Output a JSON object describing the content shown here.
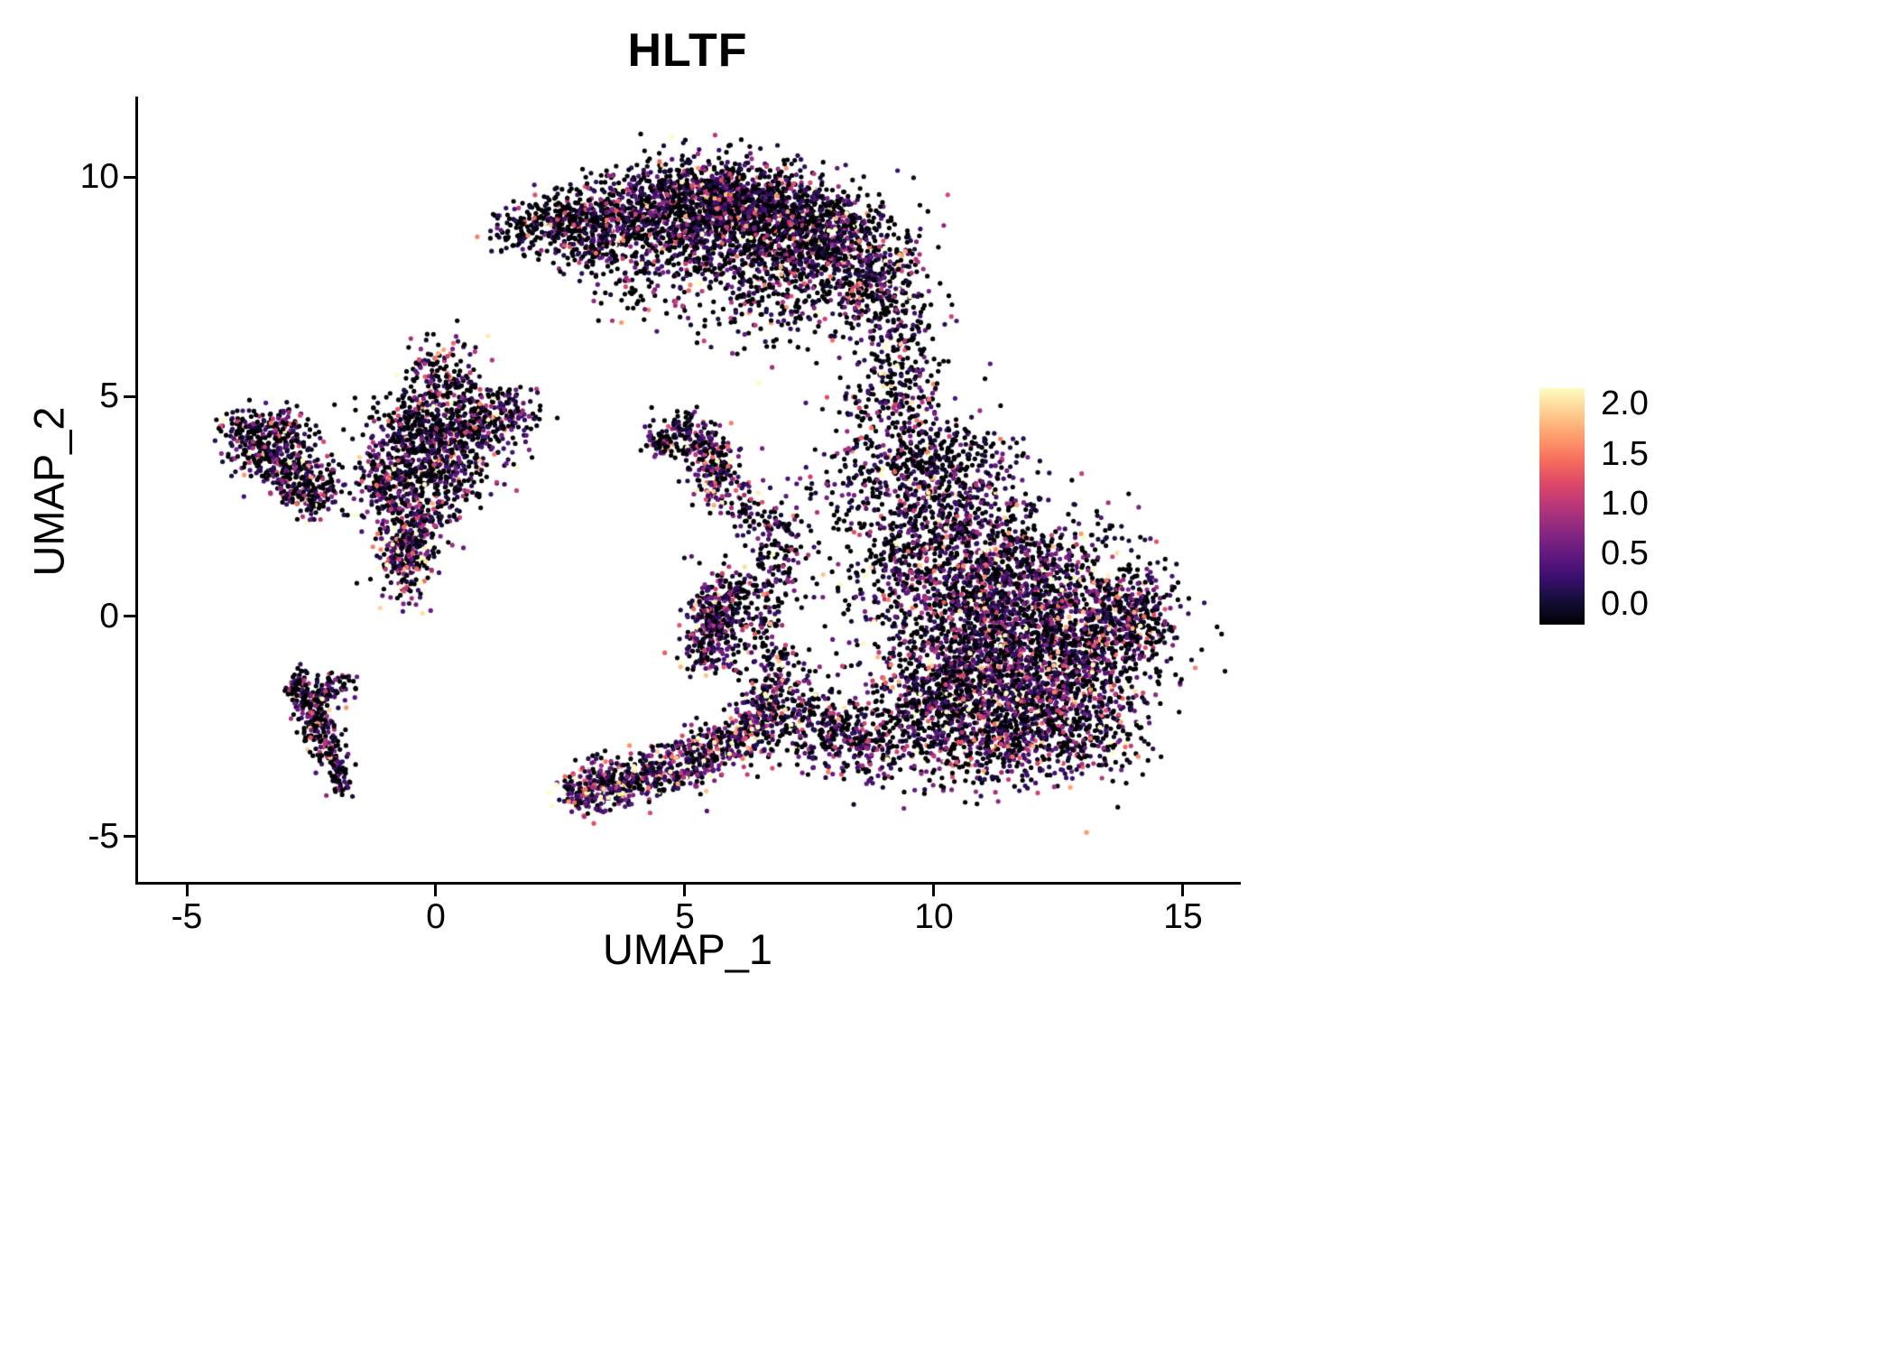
{
  "chart_data": {
    "type": "scatter",
    "title": "HLTF",
    "xlabel": "UMAP_1",
    "ylabel": "UMAP_2",
    "xlim": [
      -6.0,
      16.1
    ],
    "ylim": [
      -6.05,
      11.8
    ],
    "x_ticks": [
      -5,
      0,
      5,
      10,
      15
    ],
    "x_tick_labels": [
      "-5",
      "0",
      "5",
      "10",
      "15"
    ],
    "y_ticks": [
      -5,
      0,
      5,
      10
    ],
    "y_tick_labels": [
      "-5",
      "0",
      "5",
      "10"
    ],
    "grid": false,
    "background": "#ffffff",
    "axis_color": "#000000",
    "point_radius_px": 2.6,
    "n_points_approx": 14800,
    "colorbar": {
      "min": 0.0,
      "max": 2.0,
      "ticks": [
        "2.0",
        "1.5",
        "1.0",
        "0.5",
        "0.0"
      ],
      "colormap": "magma",
      "stops": [
        {
          "t": 0.0,
          "c": "#000004"
        },
        {
          "t": 0.1,
          "c": "#140e36"
        },
        {
          "t": 0.2,
          "c": "#3b0f70"
        },
        {
          "t": 0.3,
          "c": "#641a80"
        },
        {
          "t": 0.4,
          "c": "#8c2981"
        },
        {
          "t": 0.5,
          "c": "#b73779"
        },
        {
          "t": 0.6,
          "c": "#de4968"
        },
        {
          "t": 0.7,
          "c": "#f7705c"
        },
        {
          "t": 0.8,
          "c": "#fe9f6d"
        },
        {
          "t": 0.9,
          "c": "#fecf92"
        },
        {
          "t": 1.0,
          "c": "#fcfdbf"
        }
      ]
    },
    "cluster_fields": [
      "x",
      "y",
      "sx",
      "sy",
      "n",
      "p_zero",
      "expr_mean"
    ],
    "clusters": [
      [
        1.6,
        8.8,
        0.3,
        0.25,
        70,
        0.6,
        0.4
      ],
      [
        2.4,
        8.9,
        0.45,
        0.35,
        150,
        0.55,
        0.45
      ],
      [
        3.2,
        9.0,
        0.5,
        0.45,
        250,
        0.55,
        0.45
      ],
      [
        4.2,
        9.3,
        0.55,
        0.5,
        330,
        0.5,
        0.5
      ],
      [
        5.2,
        9.6,
        0.55,
        0.45,
        380,
        0.5,
        0.5
      ],
      [
        6.2,
        9.4,
        0.6,
        0.5,
        430,
        0.45,
        0.5
      ],
      [
        7.2,
        9.0,
        0.6,
        0.55,
        430,
        0.45,
        0.55
      ],
      [
        8.2,
        8.5,
        0.6,
        0.6,
        380,
        0.45,
        0.55
      ],
      [
        8.9,
        7.6,
        0.5,
        0.6,
        280,
        0.45,
        0.55
      ],
      [
        7.0,
        8.0,
        0.9,
        0.7,
        320,
        0.5,
        0.5
      ],
      [
        6.0,
        8.7,
        0.7,
        0.5,
        230,
        0.5,
        0.5
      ],
      [
        5.0,
        8.5,
        0.5,
        0.5,
        180,
        0.55,
        0.45
      ],
      [
        6.6,
        7.0,
        0.9,
        0.55,
        140,
        0.55,
        0.5
      ],
      [
        4.1,
        7.7,
        0.6,
        0.5,
        90,
        0.6,
        0.45
      ],
      [
        3.3,
        8.3,
        0.4,
        0.35,
        80,
        0.6,
        0.45
      ],
      [
        9.35,
        6.1,
        0.45,
        0.75,
        140,
        0.5,
        0.5
      ],
      [
        9.0,
        4.9,
        0.5,
        0.65,
        140,
        0.5,
        0.55
      ],
      [
        9.5,
        3.9,
        0.6,
        0.65,
        170,
        0.45,
        0.55
      ],
      [
        10.0,
        2.6,
        0.75,
        0.75,
        280,
        0.45,
        0.55
      ],
      [
        9.2,
        1.2,
        0.55,
        0.9,
        240,
        0.5,
        0.5
      ],
      [
        11.0,
        1.6,
        0.95,
        0.85,
        480,
        0.45,
        0.55
      ],
      [
        12.1,
        0.6,
        1.0,
        0.85,
        560,
        0.4,
        0.55
      ],
      [
        11.0,
        0.0,
        0.95,
        0.85,
        560,
        0.4,
        0.6
      ],
      [
        12.5,
        -1.0,
        0.95,
        0.85,
        620,
        0.4,
        0.6
      ],
      [
        11.5,
        -1.9,
        0.95,
        0.75,
        560,
        0.4,
        0.6
      ],
      [
        10.4,
        -1.1,
        0.85,
        0.85,
        460,
        0.45,
        0.55
      ],
      [
        13.5,
        -0.4,
        0.65,
        0.75,
        320,
        0.45,
        0.55
      ],
      [
        14.1,
        0.3,
        0.35,
        0.45,
        130,
        0.5,
        0.5
      ],
      [
        12.9,
        -2.5,
        0.75,
        0.6,
        330,
        0.45,
        0.55
      ],
      [
        11.0,
        -3.0,
        0.8,
        0.5,
        280,
        0.45,
        0.55
      ],
      [
        9.8,
        -2.1,
        0.7,
        0.65,
        280,
        0.45,
        0.55
      ],
      [
        10.4,
        3.5,
        0.6,
        0.45,
        160,
        0.5,
        0.5
      ],
      [
        -3.8,
        4.1,
        0.3,
        0.3,
        110,
        0.45,
        0.55
      ],
      [
        -3.3,
        3.7,
        0.4,
        0.4,
        170,
        0.45,
        0.55
      ],
      [
        -2.8,
        3.2,
        0.4,
        0.4,
        170,
        0.45,
        0.55
      ],
      [
        -2.5,
        2.8,
        0.3,
        0.3,
        110,
        0.45,
        0.6
      ],
      [
        -3.1,
        4.35,
        0.3,
        0.22,
        70,
        0.5,
        0.5
      ],
      [
        -0.3,
        4.5,
        0.5,
        0.4,
        190,
        0.45,
        0.55
      ],
      [
        -0.5,
        3.6,
        0.5,
        0.5,
        240,
        0.45,
        0.55
      ],
      [
        -0.9,
        2.9,
        0.4,
        0.4,
        170,
        0.45,
        0.55
      ],
      [
        -0.4,
        2.2,
        0.35,
        0.45,
        170,
        0.4,
        0.6
      ],
      [
        -0.6,
        1.3,
        0.28,
        0.5,
        230,
        0.25,
        0.7
      ],
      [
        0.3,
        4.0,
        0.5,
        0.5,
        190,
        0.45,
        0.55
      ],
      [
        0.9,
        4.4,
        0.5,
        0.4,
        170,
        0.45,
        0.55
      ],
      [
        1.5,
        4.6,
        0.3,
        0.3,
        80,
        0.5,
        0.5
      ],
      [
        0.5,
        5.3,
        0.3,
        0.5,
        100,
        0.5,
        0.5
      ],
      [
        -0.1,
        5.7,
        0.22,
        0.3,
        60,
        0.5,
        0.5
      ],
      [
        0.3,
        3.1,
        0.45,
        0.45,
        110,
        0.5,
        0.5
      ],
      [
        4.45,
        3.9,
        0.18,
        0.18,
        55,
        0.45,
        0.6
      ],
      [
        5.0,
        4.25,
        0.3,
        0.3,
        80,
        0.5,
        0.5
      ],
      [
        5.6,
        3.3,
        0.28,
        0.4,
        160,
        0.3,
        0.7
      ],
      [
        5.35,
        3.85,
        0.2,
        0.2,
        60,
        0.45,
        0.55
      ],
      [
        6.25,
        2.45,
        0.18,
        0.35,
        50,
        0.5,
        0.5
      ],
      [
        -2.75,
        -1.6,
        0.16,
        0.22,
        60,
        0.5,
        0.5
      ],
      [
        -2.55,
        -2.1,
        0.15,
        0.25,
        70,
        0.5,
        0.5
      ],
      [
        -2.35,
        -2.6,
        0.15,
        0.25,
        70,
        0.5,
        0.45
      ],
      [
        -2.1,
        -3.1,
        0.15,
        0.25,
        60,
        0.5,
        0.45
      ],
      [
        -1.9,
        -3.65,
        0.13,
        0.22,
        50,
        0.55,
        0.45
      ],
      [
        -2.35,
        -1.8,
        0.22,
        0.16,
        45,
        0.5,
        0.5
      ],
      [
        -1.95,
        -1.55,
        0.16,
        0.18,
        35,
        0.5,
        0.5
      ],
      [
        3.0,
        -4.0,
        0.25,
        0.3,
        150,
        0.2,
        0.7
      ],
      [
        3.55,
        -3.85,
        0.3,
        0.25,
        130,
        0.25,
        0.65
      ],
      [
        4.2,
        -3.6,
        0.4,
        0.3,
        150,
        0.3,
        0.6
      ],
      [
        5.0,
        -3.3,
        0.4,
        0.3,
        150,
        0.3,
        0.6
      ],
      [
        5.7,
        -3.0,
        0.4,
        0.3,
        150,
        0.3,
        0.6
      ],
      [
        6.3,
        -2.6,
        0.3,
        0.3,
        120,
        0.35,
        0.6
      ],
      [
        6.65,
        -2.0,
        0.25,
        0.35,
        100,
        0.35,
        0.6
      ],
      [
        6.85,
        -1.3,
        0.25,
        0.4,
        100,
        0.4,
        0.55
      ],
      [
        7.3,
        -2.3,
        0.45,
        0.5,
        140,
        0.45,
        0.55
      ],
      [
        8.0,
        -2.6,
        0.45,
        0.45,
        130,
        0.45,
        0.55
      ],
      [
        8.6,
        -3.0,
        0.45,
        0.4,
        130,
        0.4,
        0.55
      ],
      [
        5.55,
        0.0,
        0.25,
        0.4,
        210,
        0.35,
        0.6
      ],
      [
        5.5,
        -0.8,
        0.3,
        0.3,
        110,
        0.4,
        0.55
      ],
      [
        5.95,
        0.6,
        0.3,
        0.3,
        80,
        0.5,
        0.5
      ],
      [
        6.3,
        -0.3,
        0.4,
        0.5,
        90,
        0.5,
        0.5
      ],
      [
        6.9,
        0.9,
        0.35,
        0.55,
        90,
        0.5,
        0.5
      ],
      [
        6.85,
        1.95,
        0.3,
        0.4,
        70,
        0.5,
        0.5
      ],
      [
        8.1,
        2.9,
        0.5,
        0.6,
        60,
        0.5,
        0.5
      ]
    ]
  }
}
